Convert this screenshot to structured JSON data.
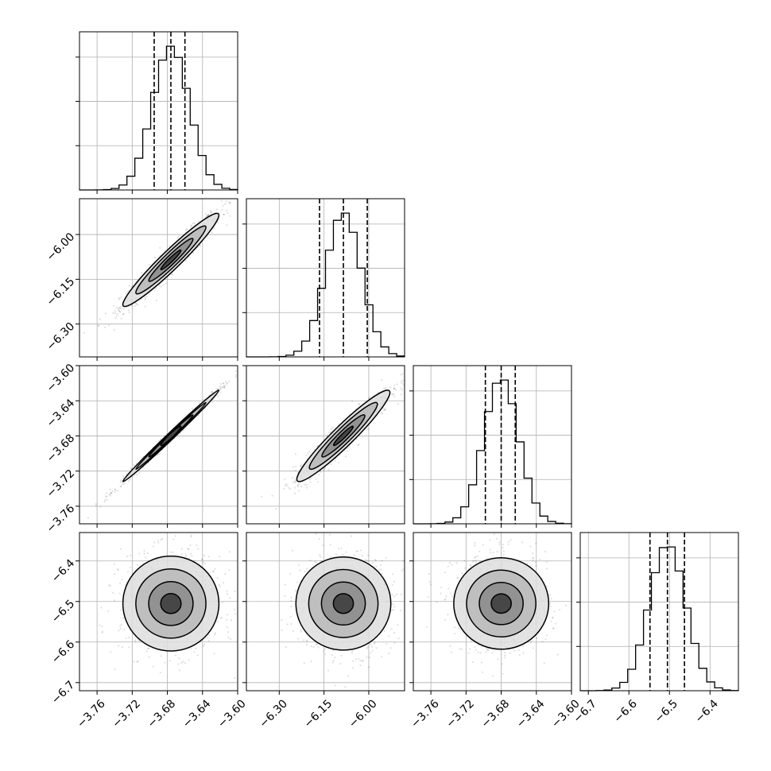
{
  "chart_data": {
    "type": "scatter",
    "kind": "corner-plot",
    "title": "",
    "params": [
      {
        "range": [
          -3.78,
          -3.6
        ],
        "ticks": [
          "−3.76",
          "−3.72",
          "−3.68",
          "−3.64",
          "−3.60"
        ],
        "tick_values": [
          -3.76,
          -3.72,
          -3.68,
          -3.64,
          -3.6
        ],
        "mean": -3.676,
        "sd": 0.021,
        "quantiles": [
          -3.695,
          -3.676,
          -3.66
        ]
      },
      {
        "range": [
          -6.41,
          -5.88
        ],
        "ticks": [
          "−6.30",
          "−6.15",
          "−6.00"
        ],
        "tick_values": [
          -6.3,
          -6.15,
          -6.0
        ],
        "mean": -6.085,
        "sd": 0.06,
        "quantiles": [
          -6.165,
          -6.085,
          -6.005
        ]
      },
      {
        "range": [
          -3.78,
          -3.6
        ],
        "ticks": [
          "−3.76",
          "−3.72",
          "−3.68",
          "−3.64",
          "−3.60"
        ],
        "tick_values": [
          -3.76,
          -3.72,
          -3.68,
          -3.64,
          -3.6
        ],
        "mean": -3.68,
        "sd": 0.02,
        "quantiles": [
          -3.698,
          -3.68,
          -3.664
        ]
      },
      {
        "range": [
          -6.72,
          -6.33
        ],
        "ticks": [
          "−6.7",
          "−6.6",
          "−6.5",
          "−6.4"
        ],
        "tick_values": [
          -6.7,
          -6.6,
          -6.5,
          -6.4
        ],
        "mean": -6.505,
        "sd": 0.045,
        "quantiles": [
          -6.548,
          -6.505,
          -6.463
        ]
      }
    ],
    "correlations": [
      [
        1.0,
        0.96,
        0.995,
        0.0
      ],
      [
        0.96,
        1.0,
        0.95,
        0.0
      ],
      [
        0.995,
        0.95,
        1.0,
        0.0
      ],
      [
        0.0,
        0.0,
        0.0,
        1.0
      ]
    ],
    "grid": true,
    "legend": "none"
  }
}
